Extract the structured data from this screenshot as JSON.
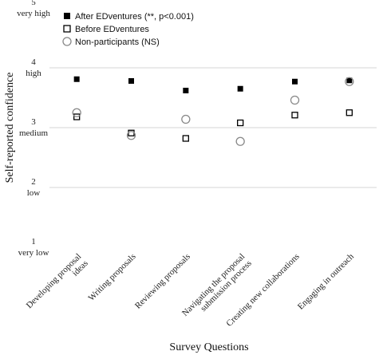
{
  "chart_data": {
    "type": "scatter",
    "xlabel": "Survey Questions",
    "ylabel": "Self-reported confidence",
    "ylim": [
      1,
      5
    ],
    "grid": true,
    "legend_position": "top-left",
    "y_ticks": [
      {
        "value": 5,
        "num": "5",
        "label": "very high"
      },
      {
        "value": 4,
        "num": "4",
        "label": "high"
      },
      {
        "value": 3,
        "num": "3",
        "label": "medium"
      },
      {
        "value": 2,
        "num": "2",
        "label": "low"
      },
      {
        "value": 1,
        "num": "1",
        "label": "very low"
      }
    ],
    "categories": [
      [
        "Developing proposal",
        "ideas"
      ],
      [
        "Writing proposals"
      ],
      [
        "Reviewing proposals"
      ],
      [
        "Navigating the proposal",
        "submission process"
      ],
      [
        "Creating new collaborations"
      ],
      [
        "Engaging in outreach"
      ]
    ],
    "series": [
      {
        "name": "After EDventures (**, p<0.001)",
        "marker": "filled-square",
        "color": "#000000",
        "values": [
          3.81,
          3.78,
          3.62,
          3.65,
          3.77,
          3.79
        ]
      },
      {
        "name": "Before EDventures",
        "marker": "open-square",
        "color": "#000000",
        "values": [
          3.18,
          2.91,
          2.82,
          3.08,
          3.21,
          3.25
        ]
      },
      {
        "name": "Non-participants (NS)",
        "marker": "open-circle",
        "color": "#888888",
        "values": [
          3.25,
          2.87,
          3.14,
          2.77,
          3.46,
          3.77
        ]
      }
    ],
    "annotations": {
      "text": "**",
      "applies_to": "After EDventures"
    }
  }
}
